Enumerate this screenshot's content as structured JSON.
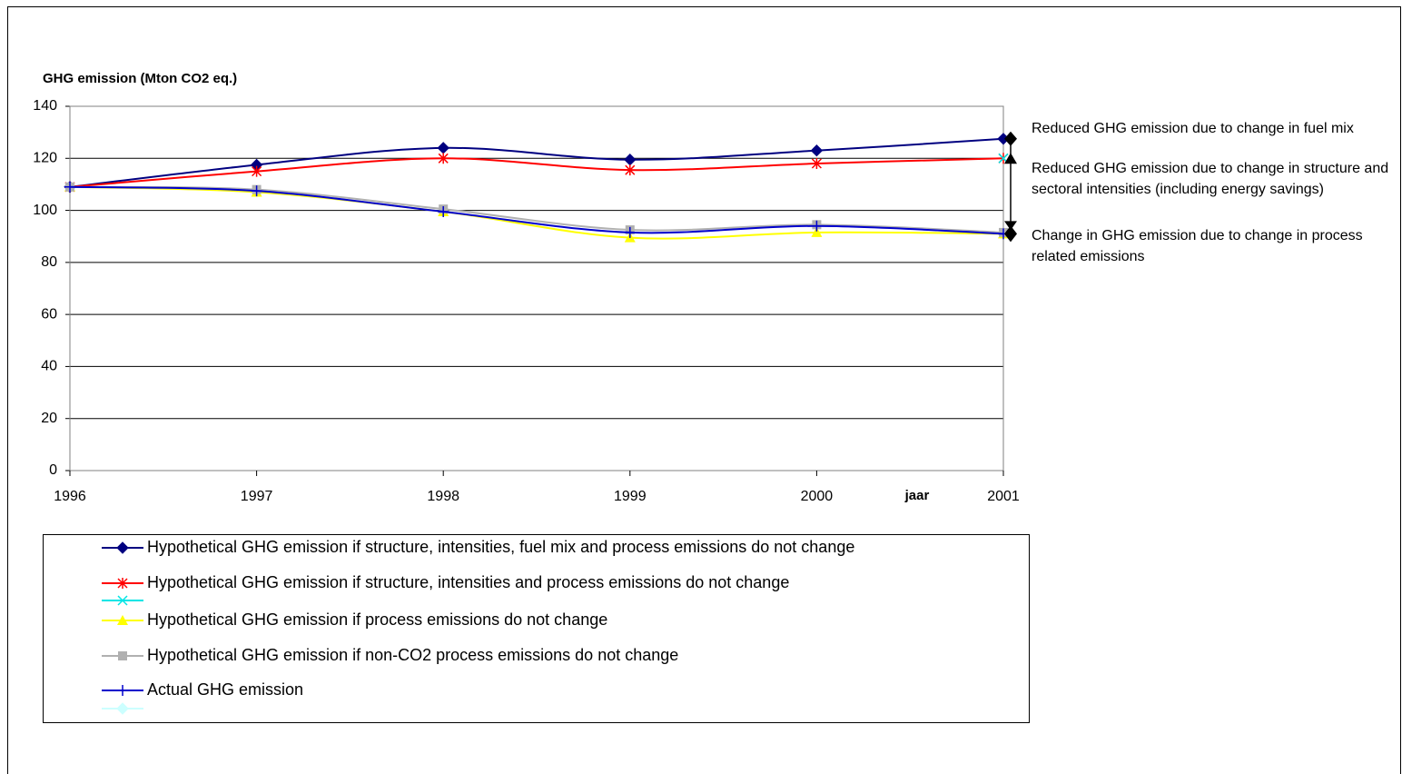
{
  "chart_data": {
    "type": "line",
    "title": "GHG emission (Mton CO2 eq.)",
    "x_label": "jaar",
    "x": [
      1996,
      1997,
      1998,
      1999,
      2000,
      2001
    ],
    "xlim": [
      1996,
      2001
    ],
    "xticks": [
      1996,
      1997,
      1998,
      1999,
      2000,
      2001
    ],
    "ylim": [
      0,
      140
    ],
    "yticks": [
      0,
      20,
      40,
      60,
      80,
      100,
      120,
      140
    ],
    "grid": true,
    "series": [
      {
        "name": "Hypothetical GHG emission if structure, intensities, fuel mix and process emissions do not change",
        "color": "#000080",
        "marker": "diamond",
        "values": [
          109,
          117.5,
          124,
          119.5,
          123,
          127.5
        ]
      },
      {
        "name": "Hypothetical GHG emission if structure, intensities and process emissions do not change",
        "color": "#ff0000",
        "marker": "asterisk",
        "values": [
          109,
          115,
          120,
          115.5,
          118,
          120
        ]
      },
      {
        "color": "#00e5e5",
        "marker": "x",
        "values": [
          null,
          null,
          null,
          null,
          null,
          120
        ]
      },
      {
        "name": "Hypothetical GHG emission if process emissions do not change",
        "color": "#ffff00",
        "marker": "triangle",
        "values": [
          109,
          107,
          99.5,
          89.5,
          91.5,
          91
        ]
      },
      {
        "name": "Hypothetical GHG emission if non-CO2 process emissions do not change",
        "color": "#b0b0b0",
        "marker": "square",
        "values": [
          109,
          108,
          100.5,
          92.5,
          94.5,
          91.5
        ]
      },
      {
        "name": "Actual GHG emission",
        "color": "#0000cc",
        "marker": "plus",
        "values": [
          109,
          107.5,
          99.5,
          91.5,
          94,
          91
        ]
      },
      {
        "color": "#ccffff",
        "marker": "diamond",
        "values": [
          null,
          null,
          null,
          null,
          null,
          null
        ]
      }
    ],
    "annotations": [
      "Reduced GHG emission due to change in fuel mix",
      "Reduced GHG emission due to change in structure and sectoral intensities (including energy savings)",
      "Change in GHG emission due to change in process related emissions"
    ]
  }
}
